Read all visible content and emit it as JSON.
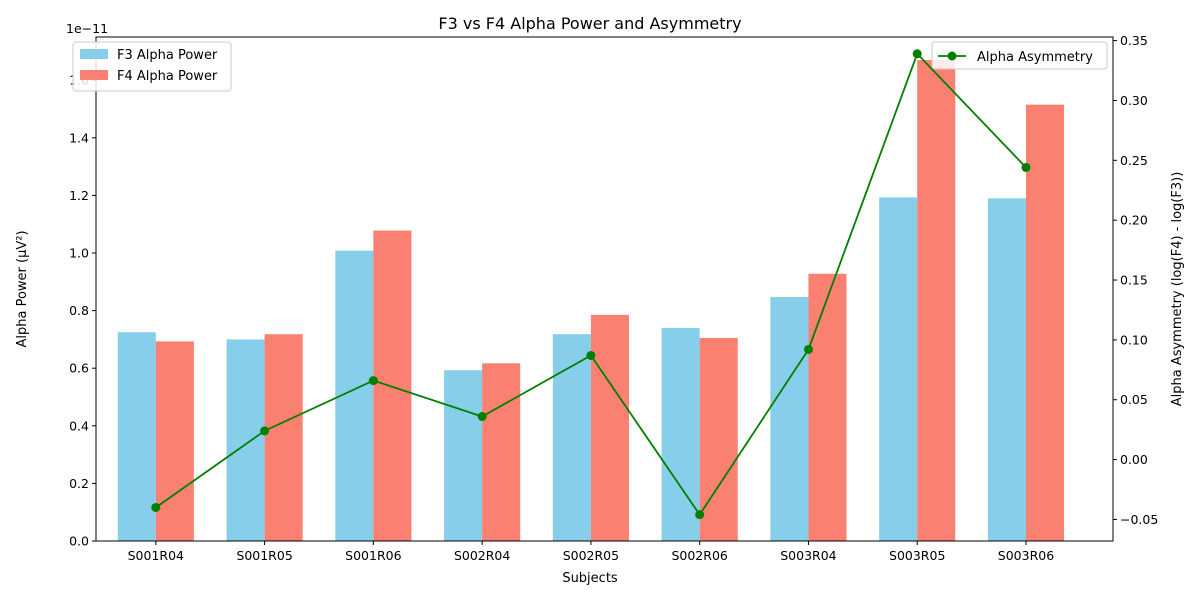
{
  "chart_data": {
    "type": "bar",
    "title": "F3 vs F4 Alpha Power and Asymmetry",
    "xlabel": "Subjects",
    "ylabel": "Alpha Power (µV²)",
    "y2label": "Alpha Asymmetry (log(F4) - log(F3))",
    "y_offset_text": "1e−11",
    "categories": [
      "S001R04",
      "S001R05",
      "S001R06",
      "S002R04",
      "S002R05",
      "S002R06",
      "S003R04",
      "S003R05",
      "S003R06"
    ],
    "ylim": [
      0,
      1.75
    ],
    "y_ticks": [
      "0.0",
      "0.2",
      "0.4",
      "0.6",
      "0.8",
      "1.0",
      "1.2",
      "1.4",
      "1.6"
    ],
    "y2lim": [
      -0.068,
      0.353
    ],
    "y2_ticks": [
      "−0.05",
      "0.00",
      "0.05",
      "0.10",
      "0.15",
      "0.20",
      "0.25",
      "0.30",
      "0.35"
    ],
    "series": [
      {
        "name": "F3 Alpha Power",
        "kind": "bar",
        "axis": "left",
        "color": "#87ceeb",
        "values": [
          0.725,
          0.7,
          1.008,
          0.593,
          0.718,
          0.74,
          0.847,
          1.193,
          1.19
        ]
      },
      {
        "name": "F4 Alpha Power",
        "kind": "bar",
        "axis": "left",
        "color": "#fa8072",
        "values": [
          0.693,
          0.718,
          1.078,
          0.617,
          0.785,
          0.705,
          0.928,
          1.67,
          1.515
        ]
      },
      {
        "name": "Alpha Asymmetry",
        "kind": "line",
        "axis": "right",
        "color": "#008000",
        "values": [
          -0.04,
          0.024,
          0.066,
          0.036,
          0.087,
          -0.046,
          0.092,
          0.339,
          0.244
        ]
      }
    ],
    "legend": {
      "bars": "top-left",
      "line": "top-right"
    },
    "grid": false
  }
}
